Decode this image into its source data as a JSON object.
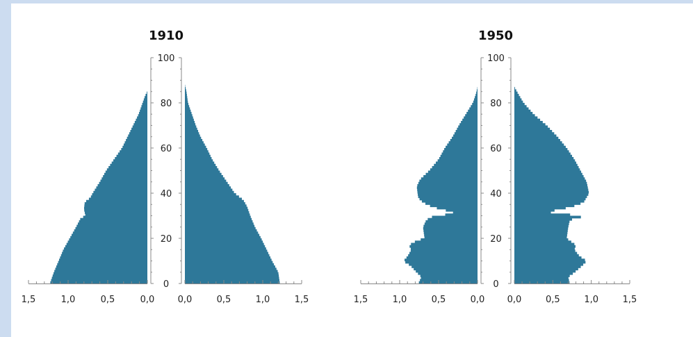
{
  "chart_data": [
    {
      "type": "bar",
      "title": "1910",
      "orientation": "horizontal-pyramid",
      "xlabel": "",
      "ylabel": "",
      "xlim": [
        0,
        1.5
      ],
      "ylim": [
        0,
        100
      ],
      "x_ticks": [
        "1,5",
        "1,0",
        "0,5",
        "0,0",
        "0,0",
        "0,5",
        "1,0",
        "1,5"
      ],
      "y_ticks": [
        "0",
        "20",
        "40",
        "60",
        "80",
        "100"
      ],
      "color": "#2e7899",
      "left_profile": [
        [
          0,
          1.23
        ],
        [
          5,
          1.18
        ],
        [
          10,
          1.12
        ],
        [
          15,
          1.06
        ],
        [
          20,
          0.98
        ],
        [
          25,
          0.9
        ],
        [
          29,
          0.84
        ],
        [
          30,
          0.78
        ],
        [
          33,
          0.8
        ],
        [
          36,
          0.79
        ],
        [
          38,
          0.72
        ],
        [
          40,
          0.69
        ],
        [
          45,
          0.6
        ],
        [
          50,
          0.52
        ],
        [
          55,
          0.42
        ],
        [
          60,
          0.32
        ],
        [
          65,
          0.25
        ],
        [
          70,
          0.18
        ],
        [
          75,
          0.11
        ],
        [
          80,
          0.06
        ],
        [
          83,
          0.03
        ],
        [
          85,
          0.0
        ]
      ],
      "right_profile": [
        [
          0,
          1.22
        ],
        [
          5,
          1.2
        ],
        [
          10,
          1.12
        ],
        [
          15,
          1.05
        ],
        [
          20,
          0.98
        ],
        [
          25,
          0.9
        ],
        [
          30,
          0.84
        ],
        [
          34,
          0.8
        ],
        [
          37,
          0.75
        ],
        [
          40,
          0.64
        ],
        [
          45,
          0.54
        ],
        [
          50,
          0.44
        ],
        [
          55,
          0.35
        ],
        [
          60,
          0.28
        ],
        [
          65,
          0.2
        ],
        [
          70,
          0.14
        ],
        [
          75,
          0.09
        ],
        [
          80,
          0.04
        ],
        [
          85,
          0.02
        ],
        [
          88,
          0.0
        ]
      ]
    },
    {
      "type": "bar",
      "title": "1950",
      "orientation": "horizontal-pyramid",
      "xlabel": "",
      "ylabel": "",
      "xlim": [
        0,
        1.5
      ],
      "ylim": [
        0,
        100
      ],
      "x_ticks": [
        "1,5",
        "1,0",
        "0,5",
        "0,0",
        "0,0",
        "0,5",
        "1,0",
        "1,5"
      ],
      "y_ticks": [
        "0",
        "20",
        "40",
        "60",
        "80",
        "100"
      ],
      "color": "#2e7899",
      "left_profile": [
        [
          0,
          0.76
        ],
        [
          3,
          0.72
        ],
        [
          5,
          0.78
        ],
        [
          8,
          0.86
        ],
        [
          10,
          0.95
        ],
        [
          12,
          0.9
        ],
        [
          15,
          0.85
        ],
        [
          17,
          0.88
        ],
        [
          19,
          0.78
        ],
        [
          20,
          0.68
        ],
        [
          25,
          0.7
        ],
        [
          28,
          0.66
        ],
        [
          29,
          0.62
        ],
        [
          30,
          0.55
        ],
        [
          31,
          0.28
        ],
        [
          32,
          0.35
        ],
        [
          34,
          0.58
        ],
        [
          36,
          0.7
        ],
        [
          38,
          0.76
        ],
        [
          40,
          0.77
        ],
        [
          43,
          0.78
        ],
        [
          46,
          0.74
        ],
        [
          50,
          0.62
        ],
        [
          55,
          0.5
        ],
        [
          60,
          0.42
        ],
        [
          65,
          0.32
        ],
        [
          70,
          0.24
        ],
        [
          75,
          0.15
        ],
        [
          80,
          0.06
        ],
        [
          84,
          0.02
        ],
        [
          87,
          0.0
        ]
      ],
      "right_profile": [
        [
          0,
          0.72
        ],
        [
          3,
          0.7
        ],
        [
          5,
          0.78
        ],
        [
          8,
          0.88
        ],
        [
          10,
          0.94
        ],
        [
          12,
          0.85
        ],
        [
          15,
          0.78
        ],
        [
          17,
          0.8
        ],
        [
          19,
          0.72
        ],
        [
          20,
          0.68
        ],
        [
          25,
          0.7
        ],
        [
          28,
          0.72
        ],
        [
          29,
          0.78
        ],
        [
          30,
          0.95
        ],
        [
          31,
          0.5
        ],
        [
          32,
          0.45
        ],
        [
          34,
          0.74
        ],
        [
          36,
          0.9
        ],
        [
          40,
          0.97
        ],
        [
          45,
          0.94
        ],
        [
          50,
          0.86
        ],
        [
          55,
          0.78
        ],
        [
          60,
          0.68
        ],
        [
          65,
          0.56
        ],
        [
          70,
          0.42
        ],
        [
          75,
          0.25
        ],
        [
          80,
          0.12
        ],
        [
          84,
          0.05
        ],
        [
          87,
          0.0
        ]
      ]
    }
  ]
}
